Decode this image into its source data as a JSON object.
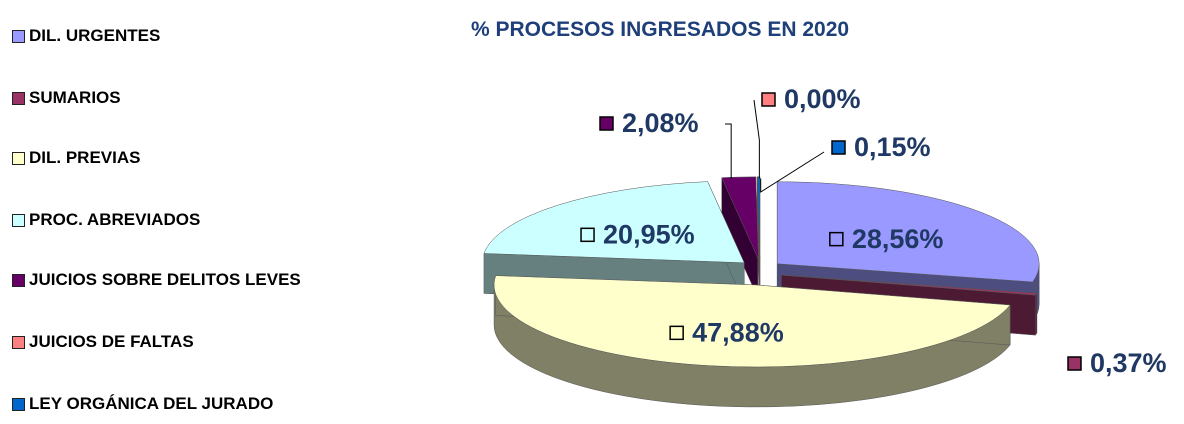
{
  "chart_data": {
    "type": "pie3d",
    "title": "% PROCESOS INGRESADOS EN 2020",
    "categories": [
      "DIL. URGENTES",
      "SUMARIOS",
      "DIL. PREVIAS",
      "PROC. ABREVIADOS",
      "JUICIOS SOBRE DELITOS LEVES",
      "JUICIOS DE FALTAS",
      "LEY ORGÁNICA DEL JURADO"
    ],
    "values": [
      28.56,
      0.37,
      47.88,
      20.95,
      2.08,
      0.0,
      0.15
    ],
    "value_labels": [
      "28,56%",
      "0,37%",
      "47,88%",
      "20,95%",
      "2,08%",
      "0,00%",
      "0,15%"
    ],
    "colors": [
      "#9999ff",
      "#993366",
      "#ffffcc",
      "#ccffff",
      "#660066",
      "#ff8080",
      "#0066cc"
    ]
  }
}
